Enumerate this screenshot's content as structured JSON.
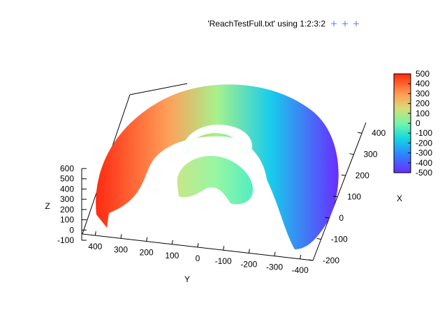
{
  "chart_data": {
    "type": "scatter",
    "title": "",
    "view": "3d-surface",
    "series": [
      {
        "name": "'ReachTestFull.txt' using 1:2:3:2",
        "marker": "+",
        "marker_color": "#5a7ae6"
      }
    ],
    "axes": {
      "x": {
        "label": "X",
        "ticks": [
          "-200",
          "-100",
          "0",
          "100",
          "200",
          "300",
          "400"
        ],
        "range": [
          -200,
          450
        ]
      },
      "y": {
        "label": "Y",
        "ticks": [
          "400",
          "300",
          "200",
          "100",
          "0",
          "-100",
          "-200",
          "-300",
          "-400"
        ],
        "range": [
          -450,
          450
        ]
      },
      "z": {
        "label": "Z",
        "ticks": [
          "-100",
          "0",
          "100",
          "200",
          "300",
          "400",
          "500",
          "600"
        ],
        "range": [
          -100,
          600
        ]
      }
    },
    "colorbar": {
      "ticks": [
        "500",
        "400",
        "300",
        "200",
        "100",
        "0",
        "-100",
        "-200",
        "-300",
        "-400",
        "-500"
      ],
      "range": [
        -500,
        500
      ],
      "palette": [
        "#6a2cff",
        "#2a8cff",
        "#14d8e0",
        "#78f5a6",
        "#d8dc78",
        "#ff9a52",
        "#ff2a0a"
      ]
    }
  }
}
